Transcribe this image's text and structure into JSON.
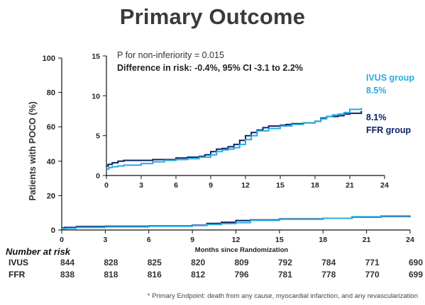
{
  "slide": {
    "title": "Primary Outcome",
    "footnote": "* Primary Endpoint: death from any cause, myocardial infarction, and any revascularization"
  },
  "colors": {
    "ivus": "#29abe2",
    "ffr": "#0d2266",
    "axis": "#111111",
    "text": "#333333"
  },
  "chart_data": [
    {
      "type": "line",
      "id": "main",
      "title": "",
      "xlabel": "Months since Randomization",
      "ylabel": "Patients with POCO (%)",
      "xlim": [
        0,
        24
      ],
      "ylim": [
        0,
        100
      ],
      "x_ticks": [
        0,
        3,
        6,
        9,
        12,
        15,
        18,
        21,
        24
      ],
      "y_ticks": [
        0,
        20,
        40,
        60,
        80,
        100
      ],
      "grid": false,
      "series": [
        {
          "name": "FFR group",
          "color": "#0d2266",
          "points": [
            [
              0,
              1.2
            ],
            [
              0.2,
              1.5
            ],
            [
              1,
              2.0
            ],
            [
              3,
              2.2
            ],
            [
              6,
              2.4
            ],
            [
              9,
              2.8
            ],
            [
              10,
              3.8
            ],
            [
              11,
              4.5
            ],
            [
              12,
              5.5
            ],
            [
              13,
              5.9
            ],
            [
              15,
              6.4
            ],
            [
              18,
              6.8
            ],
            [
              20,
              7.5
            ],
            [
              22,
              7.9
            ],
            [
              24,
              8.1
            ]
          ]
        },
        {
          "name": "IVUS group",
          "color": "#29abe2",
          "points": [
            [
              0,
              0.8
            ],
            [
              0.3,
              1.0
            ],
            [
              1,
              1.5
            ],
            [
              3,
              1.8
            ],
            [
              6,
              2.2
            ],
            [
              9,
              2.6
            ],
            [
              10,
              3.2
            ],
            [
              11,
              3.7
            ],
            [
              12,
              4.3
            ],
            [
              13,
              5.6
            ],
            [
              15,
              6.2
            ],
            [
              18,
              6.8
            ],
            [
              20,
              7.7
            ],
            [
              22,
              8.2
            ],
            [
              24,
              8.5
            ]
          ]
        }
      ]
    },
    {
      "type": "line",
      "id": "inset",
      "title": "",
      "xlim": [
        0,
        24
      ],
      "ylim": [
        0,
        15
      ],
      "x_ticks": [
        0,
        3,
        6,
        9,
        12,
        15,
        18,
        21,
        24
      ],
      "y_ticks": [
        0,
        5,
        10,
        15
      ],
      "grid": false,
      "annotations": [
        "P for non-inferiority  = 0.015",
        "Difference  in risk: -0.4%, 95% CI -3.1 to 2.2%"
      ],
      "series": [
        {
          "name": "FFR group",
          "label_lines": [
            "8.1%",
            "FFR group"
          ],
          "color": "#0d2266",
          "points": [
            [
              0,
              1.2
            ],
            [
              0.15,
              1.4
            ],
            [
              0.5,
              1.6
            ],
            [
              1,
              1.8
            ],
            [
              1.5,
              1.9
            ],
            [
              3,
              1.9
            ],
            [
              4,
              2.0
            ],
            [
              6,
              2.2
            ],
            [
              7,
              2.3
            ],
            [
              8,
              2.4
            ],
            [
              8.5,
              2.6
            ],
            [
              9,
              3.0
            ],
            [
              9.5,
              3.3
            ],
            [
              10,
              3.4
            ],
            [
              10.5,
              3.6
            ],
            [
              11,
              3.9
            ],
            [
              11.5,
              4.4
            ],
            [
              12,
              5.0
            ],
            [
              12.5,
              5.4
            ],
            [
              13,
              5.7
            ],
            [
              13.5,
              6.0
            ],
            [
              14,
              6.2
            ],
            [
              15,
              6.3
            ],
            [
              15.5,
              6.4
            ],
            [
              16,
              6.5
            ],
            [
              17,
              6.6
            ],
            [
              18,
              6.8
            ],
            [
              18.5,
              7.2
            ],
            [
              19,
              7.4
            ],
            [
              20,
              7.5
            ],
            [
              20.5,
              7.7
            ],
            [
              21,
              7.8
            ],
            [
              22,
              8.1
            ]
          ]
        },
        {
          "name": "IVUS group",
          "label_lines": [
            "IVUS group",
            "8.5%"
          ],
          "color": "#29abe2",
          "points": [
            [
              0,
              0.8
            ],
            [
              0.2,
              1.0
            ],
            [
              0.5,
              1.1
            ],
            [
              1,
              1.2
            ],
            [
              1.5,
              1.3
            ],
            [
              3,
              1.5
            ],
            [
              4,
              1.7
            ],
            [
              5,
              1.9
            ],
            [
              6,
              2.0
            ],
            [
              7,
              2.1
            ],
            [
              8,
              2.3
            ],
            [
              9,
              2.6
            ],
            [
              9.5,
              3.0
            ],
            [
              10,
              3.2
            ],
            [
              10.5,
              3.3
            ],
            [
              11,
              3.5
            ],
            [
              11.5,
              3.9
            ],
            [
              12,
              4.5
            ],
            [
              12.5,
              5.0
            ],
            [
              13,
              5.6
            ],
            [
              14,
              5.9
            ],
            [
              15,
              6.2
            ],
            [
              16,
              6.4
            ],
            [
              17,
              6.6
            ],
            [
              18,
              6.8
            ],
            [
              18.5,
              7.1
            ],
            [
              19,
              7.4
            ],
            [
              19.5,
              7.6
            ],
            [
              20,
              7.7
            ],
            [
              20.5,
              7.9
            ],
            [
              21,
              8.3
            ],
            [
              22,
              8.5
            ]
          ]
        }
      ]
    }
  ],
  "risk_table": {
    "title": "Number at risk",
    "months": [
      0,
      3,
      6,
      9,
      12,
      15,
      18,
      21,
      24
    ],
    "rows": [
      {
        "label": "IVUS",
        "values": [
          "844",
          "828",
          "825",
          "820",
          "809",
          "792",
          "784",
          "771",
          "690"
        ]
      },
      {
        "label": "FFR",
        "values": [
          "838",
          "818",
          "816",
          "812",
          "796",
          "781",
          "778",
          "770",
          "699"
        ]
      }
    ]
  }
}
